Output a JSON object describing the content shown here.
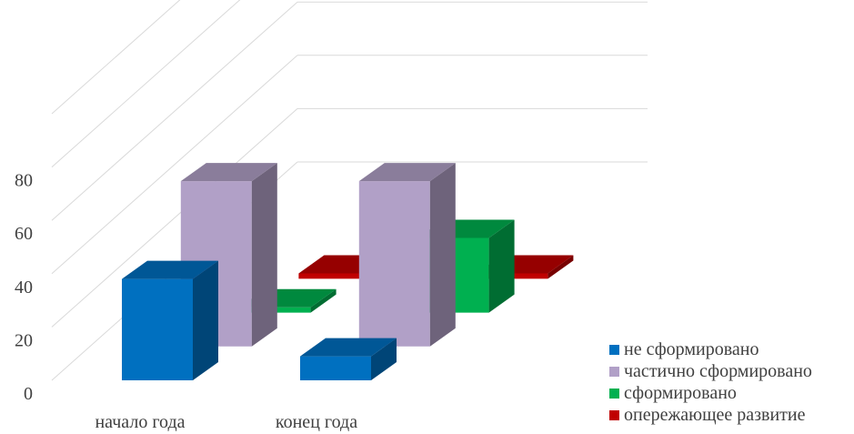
{
  "chart_data": {
    "type": "bar",
    "style": "3d-clustered-columns",
    "categories": [
      "начало года",
      "конец года"
    ],
    "series": [
      {
        "name": "не сформировано",
        "values": [
          38,
          9
        ],
        "color": "#0070C0"
      },
      {
        "name": "частично сформировано",
        "values": [
          62,
          62
        ],
        "color": "#B1A0C7"
      },
      {
        "name": "сформировано",
        "values": [
          2,
          28
        ],
        "color": "#00B050"
      },
      {
        "name": "опережающее развитие",
        "values": [
          2,
          2
        ],
        "color": "#C00000"
      }
    ],
    "y_ticks": [
      "0",
      "20",
      "40",
      "60",
      "80"
    ],
    "ylim": [
      0,
      100
    ],
    "grid": true,
    "legend_position": "bottom-right"
  }
}
